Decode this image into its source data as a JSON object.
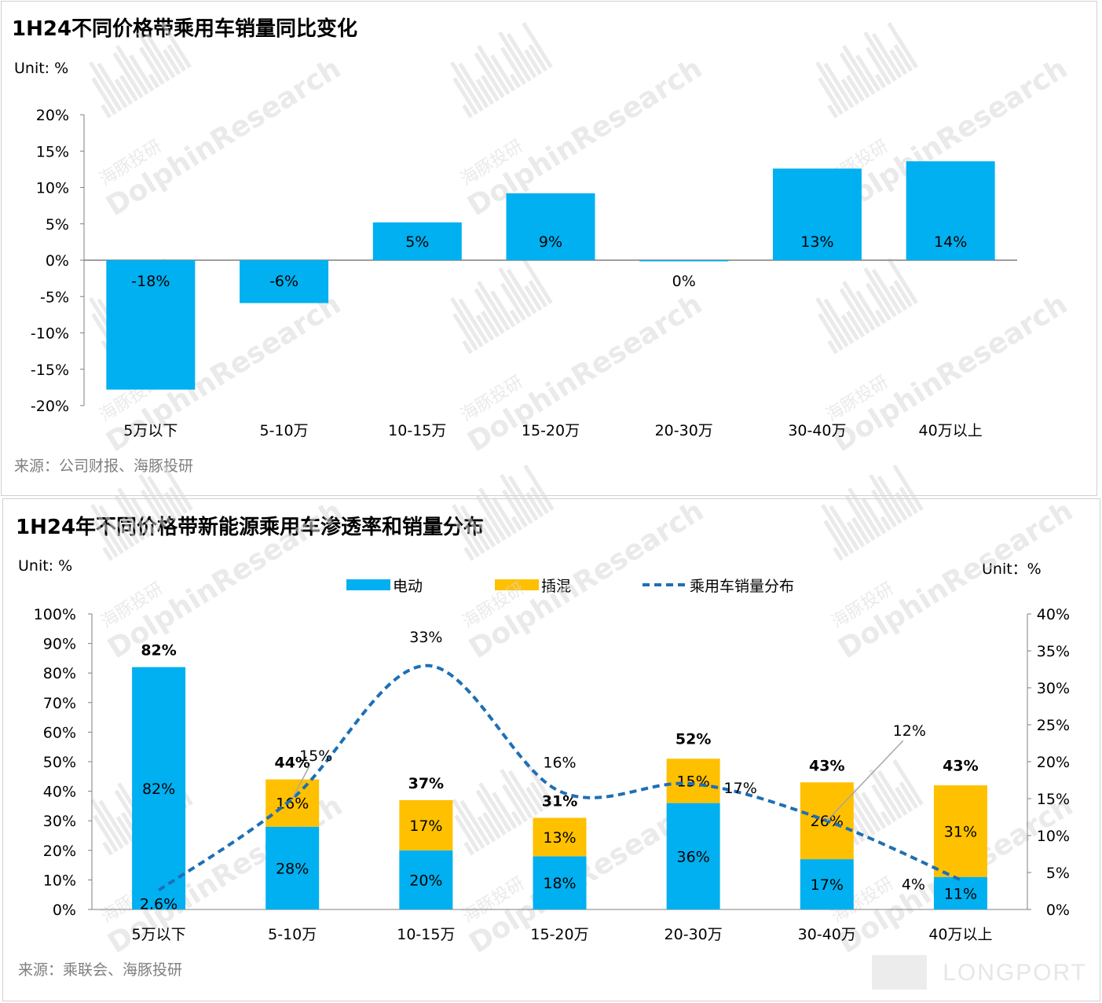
{
  "colors": {
    "blue": "#00b0f0",
    "orange": "#ffc000",
    "line": "#1e6fb5",
    "axis": "#7f7f7f",
    "watermark": "#d9d9d9"
  },
  "watermark": {
    "cn": "海豚投研",
    "en": "DolphinResearch",
    "brand": "LONGPORT"
  },
  "chart1": {
    "title": "1H24不同价格带乘用车销量同比变化",
    "unit": "Unit: %",
    "source": "来源：公司财报、海豚投研",
    "chart_data": {
      "type": "bar",
      "categories": [
        "5万以下",
        "5-10万",
        "10-15万",
        "15-20万",
        "20-30万",
        "30-40万",
        "40万以上"
      ],
      "values": [
        -17.8,
        -5.9,
        5.2,
        9.2,
        -0.1,
        12.6,
        13.6
      ],
      "data_labels": [
        "-18%",
        "-6%",
        "5%",
        "9%",
        "0%",
        "13%",
        "14%"
      ],
      "ylim": [
        -20,
        20
      ],
      "yticks": [
        "20%",
        "15%",
        "10%",
        "5%",
        "0%",
        "-5%",
        "-10%",
        "-15%",
        "-20%"
      ],
      "grid": false,
      "legend": "none"
    }
  },
  "chart2": {
    "title": "1H24年不同价格带新能源乘用车渗透率和销量分布",
    "unit_left": "Unit: %",
    "unit_right": "Unit：%",
    "source": "来源：乘联会、海豚投研",
    "legend": {
      "ev": "电动",
      "phev": "插混",
      "share": "乘用车销量分布"
    },
    "chart_data": {
      "type": "bar",
      "stacked": true,
      "categories": [
        "5万以下",
        "5-10万",
        "10-15万",
        "15-20万",
        "20-30万",
        "30-40万",
        "40万以上"
      ],
      "series": [
        {
          "name": "电动",
          "values": [
            82,
            28,
            20,
            18,
            36,
            17,
            11
          ],
          "labels": [
            "82%",
            "28%",
            "20%",
            "18%",
            "36%",
            "17%",
            "11%"
          ]
        },
        {
          "name": "插混",
          "values": [
            0,
            16,
            17,
            13,
            15,
            26,
            31
          ],
          "labels": [
            "",
            "16%",
            "17%",
            "13%",
            "15%",
            "26%",
            "31%"
          ]
        }
      ],
      "totals": [
        82,
        44,
        37,
        31,
        52,
        43,
        43
      ],
      "total_labels": [
        "82%",
        "44%",
        "37%",
        "31%",
        "52%",
        "43%",
        "43%"
      ],
      "line_series": {
        "name": "乘用车销量分布",
        "axis": "right",
        "values": [
          2.6,
          15,
          33,
          16,
          17,
          12,
          4
        ],
        "labels": [
          "2.6%",
          "15%",
          "33%",
          "16%",
          "17%",
          "12%",
          "4%"
        ]
      },
      "ylim_left": [
        0,
        100
      ],
      "ylim_right": [
        0,
        40
      ],
      "yticks_left": [
        "100%",
        "90%",
        "80%",
        "70%",
        "60%",
        "50%",
        "40%",
        "30%",
        "20%",
        "10%",
        "0%"
      ],
      "yticks_right": [
        "40%",
        "35%",
        "30%",
        "25%",
        "20%",
        "15%",
        "10%",
        "5%",
        "0%"
      ],
      "grid": false,
      "legend_position": "top"
    }
  }
}
